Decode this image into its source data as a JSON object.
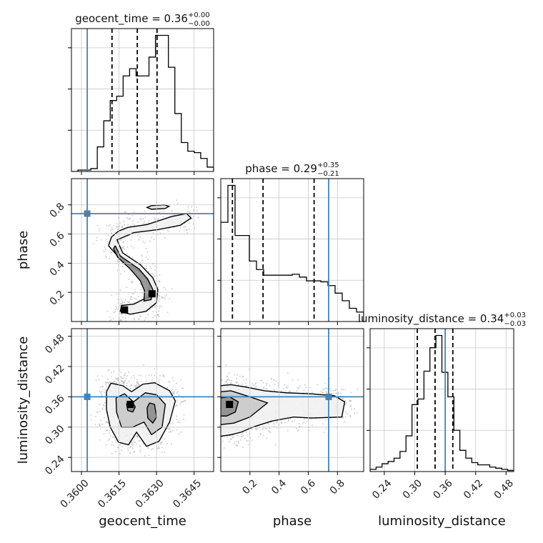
{
  "chart_data": {
    "type": "corner",
    "parameters": [
      "geocent_time",
      "phase",
      "luminosity_distance"
    ],
    "truths": {
      "geocent_time": 0.36023,
      "phase": 0.74,
      "luminosity_distance": 0.36
    },
    "titles": [
      {
        "param": "geocent_time",
        "text": "geocent_time = 0.36",
        "plus": "+0.00",
        "minus": "−0.00"
      },
      {
        "param": "phase",
        "text": "phase = 0.29",
        "plus": "+0.35",
        "minus": "−0.21"
      },
      {
        "param": "luminosity_distance",
        "text": "luminosity_distance = 0.34",
        "plus": "+0.03",
        "minus": "−0.03"
      }
    ],
    "axes": {
      "geocent_time": {
        "label": "geocent_time",
        "range": [
          0.3596,
          0.36528
        ],
        "ticks": [
          0.36,
          0.3615,
          0.363,
          0.3645
        ],
        "tick_labels": [
          "0.3600",
          "0.3615",
          "0.3630",
          "0.3645"
        ]
      },
      "phase": {
        "label": "phase",
        "range": [
          0.0,
          0.98
        ],
        "ticks": [
          0.2,
          0.4,
          0.6,
          0.8
        ],
        "tick_labels": [
          "0.2",
          "0.4",
          "0.6",
          "0.8"
        ]
      },
      "luminosity_distance": {
        "label": "luminosity_distance",
        "range": [
          0.212,
          0.495
        ],
        "ticks": [
          0.24,
          0.3,
          0.36,
          0.42,
          0.48
        ],
        "tick_labels": [
          "0.24",
          "0.30",
          "0.36",
          "0.42",
          "0.48"
        ]
      }
    },
    "histograms": {
      "geocent_time": {
        "edges_range": [
          0.3596,
          0.36528
        ],
        "counts": [
          0,
          1,
          1,
          2,
          17,
          35,
          49,
          52,
          66,
          71,
          66,
          66,
          79,
          94,
          94,
          72,
          40,
          20,
          14,
          13,
          9,
          3
        ],
        "quantiles": [
          0.36122,
          0.36223,
          0.36302
        ]
      },
      "phase": {
        "edges_range": [
          0.0,
          0.98
        ],
        "counts": [
          105,
          144,
          91,
          91,
          64,
          55,
          49,
          49,
          49,
          49,
          50,
          47,
          43,
          43,
          42,
          38,
          30,
          22,
          14,
          10
        ],
        "quantiles": [
          0.08,
          0.29,
          0.64
        ]
      },
      "luminosity_distance": {
        "edges_range": [
          0.212,
          0.495
        ],
        "counts": [
          2,
          4,
          7,
          9,
          12,
          18,
          32,
          60,
          65,
          90,
          111,
          122,
          89,
          67,
          37,
          19,
          12,
          8,
          6,
          6,
          4,
          3,
          2,
          1
        ],
        "quantiles": [
          0.305,
          0.34,
          0.375
        ]
      }
    },
    "contours": {
      "geocent_time|phase": {
        "outer": [
          [
            0.36108,
            0.52
          ],
          [
            0.3612,
            0.58
          ],
          [
            0.36148,
            0.62
          ],
          [
            0.36185,
            0.645
          ],
          [
            0.36262,
            0.665
          ],
          [
            0.3636,
            0.72
          ],
          [
            0.3642,
            0.74
          ],
          [
            0.36438,
            0.71
          ],
          [
            0.36395,
            0.66
          ],
          [
            0.36305,
            0.63
          ],
          [
            0.3621,
            0.61
          ],
          [
            0.36142,
            0.56
          ],
          [
            0.36165,
            0.47
          ],
          [
            0.36235,
            0.39
          ],
          [
            0.36285,
            0.3
          ],
          [
            0.36305,
            0.22
          ],
          [
            0.363,
            0.13
          ],
          [
            0.36258,
            0.07
          ],
          [
            0.36195,
            0.05
          ],
          [
            0.36155,
            0.07
          ],
          [
            0.3616,
            0.11
          ],
          [
            0.3621,
            0.12
          ],
          [
            0.36268,
            0.17
          ],
          [
            0.36272,
            0.26
          ],
          [
            0.36245,
            0.33
          ],
          [
            0.3616,
            0.42
          ],
          [
            0.36108,
            0.52
          ]
        ],
        "inner": [
          [
            0.36135,
            0.52
          ],
          [
            0.36155,
            0.45
          ],
          [
            0.3623,
            0.36
          ],
          [
            0.36265,
            0.29
          ],
          [
            0.36285,
            0.22
          ],
          [
            0.36278,
            0.15
          ],
          [
            0.3625,
            0.14
          ],
          [
            0.36252,
            0.21
          ],
          [
            0.36235,
            0.28
          ],
          [
            0.36195,
            0.36
          ],
          [
            0.36145,
            0.44
          ],
          [
            0.36128,
            0.5
          ],
          [
            0.36135,
            0.52
          ]
        ],
        "top": [
          [
            0.3628,
            0.795
          ],
          [
            0.3633,
            0.8
          ],
          [
            0.3635,
            0.79
          ],
          [
            0.36335,
            0.775
          ],
          [
            0.3628,
            0.77
          ],
          [
            0.36262,
            0.782
          ],
          [
            0.3628,
            0.795
          ]
        ]
      },
      "geocent_time|luminosity_distance": {
        "outer": [
          [
            0.361,
            0.37
          ],
          [
            0.36118,
            0.387
          ],
          [
            0.36165,
            0.382
          ],
          [
            0.362,
            0.37
          ],
          [
            0.36245,
            0.385
          ],
          [
            0.36292,
            0.388
          ],
          [
            0.36352,
            0.372
          ],
          [
            0.36375,
            0.352
          ],
          [
            0.36352,
            0.31
          ],
          [
            0.3631,
            0.272
          ],
          [
            0.3626,
            0.262
          ],
          [
            0.3622,
            0.29
          ],
          [
            0.36188,
            0.265
          ],
          [
            0.36148,
            0.27
          ],
          [
            0.36115,
            0.3
          ],
          [
            0.361,
            0.335
          ],
          [
            0.361,
            0.37
          ]
        ],
        "middle": [
          [
            0.36138,
            0.358
          ],
          [
            0.36172,
            0.366
          ],
          [
            0.36208,
            0.35
          ],
          [
            0.36255,
            0.368
          ],
          [
            0.363,
            0.364
          ],
          [
            0.36335,
            0.345
          ],
          [
            0.36322,
            0.3
          ],
          [
            0.3628,
            0.285
          ],
          [
            0.3625,
            0.31
          ],
          [
            0.36205,
            0.3
          ],
          [
            0.3616,
            0.3
          ],
          [
            0.3614,
            0.33
          ],
          [
            0.36138,
            0.358
          ]
        ],
        "inner": [
          [
            0.36272,
            0.348
          ],
          [
            0.36292,
            0.345
          ],
          [
            0.363,
            0.32
          ],
          [
            0.36285,
            0.308
          ],
          [
            0.36265,
            0.318
          ],
          [
            0.36262,
            0.338
          ],
          [
            0.36272,
            0.348
          ]
        ],
        "inner2": [
          [
            0.3618,
            0.346
          ],
          [
            0.362,
            0.352
          ],
          [
            0.36215,
            0.34
          ],
          [
            0.36205,
            0.33
          ],
          [
            0.36185,
            0.333
          ],
          [
            0.3618,
            0.346
          ]
        ]
      },
      "phase|luminosity_distance": {
        "outer": [
          [
            0.0,
            0.382
          ],
          [
            0.07,
            0.384
          ],
          [
            0.16,
            0.38
          ],
          [
            0.3,
            0.372
          ],
          [
            0.45,
            0.368
          ],
          [
            0.62,
            0.366
          ],
          [
            0.78,
            0.362
          ],
          [
            0.85,
            0.35
          ],
          [
            0.83,
            0.32
          ],
          [
            0.62,
            0.318
          ],
          [
            0.5,
            0.32
          ],
          [
            0.35,
            0.312
          ],
          [
            0.22,
            0.3
          ],
          [
            0.14,
            0.29
          ],
          [
            0.07,
            0.285
          ],
          [
            0.0,
            0.282
          ]
        ],
        "middle": [
          [
            0.0,
            0.37
          ],
          [
            0.07,
            0.372
          ],
          [
            0.2,
            0.36
          ],
          [
            0.32,
            0.348
          ],
          [
            0.2,
            0.32
          ],
          [
            0.09,
            0.308
          ],
          [
            0.0,
            0.305
          ]
        ],
        "inner": [
          [
            0.0,
            0.358
          ],
          [
            0.06,
            0.36
          ],
          [
            0.12,
            0.35
          ],
          [
            0.1,
            0.33
          ],
          [
            0.04,
            0.322
          ],
          [
            0.0,
            0.322
          ]
        ]
      }
    }
  }
}
